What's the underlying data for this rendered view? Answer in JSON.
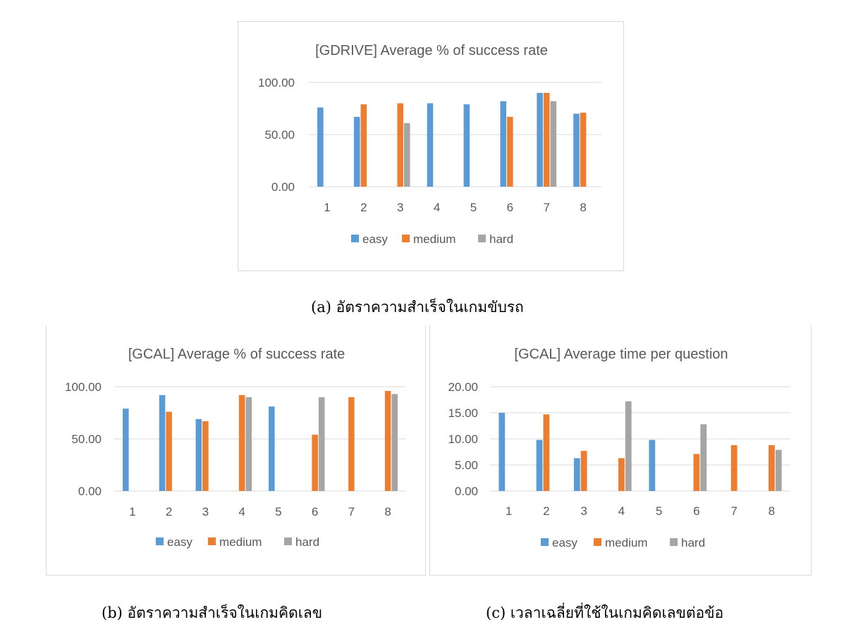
{
  "chart_data": [
    {
      "type": "bar",
      "title": "[GDRIVE] Average % of success rate",
      "xlabel": "",
      "ylabel": "",
      "categories": [
        "1",
        "2",
        "3",
        "4",
        "5",
        "6",
        "7",
        "8"
      ],
      "ylim": [
        0,
        100
      ],
      "yticks": [
        "0.00",
        "50.00",
        "100.00"
      ],
      "grid": true,
      "legend": "bottom",
      "series": [
        {
          "name": "easy",
          "color": "#5b9bd5",
          "values": [
            76,
            67,
            null,
            80,
            79,
            82,
            90,
            70
          ]
        },
        {
          "name": "medium",
          "color": "#ed7d31",
          "values": [
            null,
            79,
            80,
            null,
            null,
            67,
            90,
            71
          ]
        },
        {
          "name": "hard",
          "color": "#a5a5a5",
          "values": [
            null,
            null,
            61,
            null,
            null,
            null,
            82,
            null
          ]
        }
      ]
    },
    {
      "type": "bar",
      "title": "[GCAL] Average % of success rate",
      "xlabel": "",
      "ylabel": "",
      "categories": [
        "1",
        "2",
        "3",
        "4",
        "5",
        "6",
        "7",
        "8"
      ],
      "ylim": [
        0,
        100
      ],
      "yticks": [
        "0.00",
        "50.00",
        "100.00"
      ],
      "grid": true,
      "legend": "bottom",
      "series": [
        {
          "name": "easy",
          "color": "#5b9bd5",
          "values": [
            79,
            92,
            69,
            null,
            81,
            null,
            null,
            null
          ]
        },
        {
          "name": "medium",
          "color": "#ed7d31",
          "values": [
            null,
            76,
            67,
            92,
            null,
            54,
            90,
            96
          ]
        },
        {
          "name": "hard",
          "color": "#a5a5a5",
          "values": [
            null,
            null,
            null,
            90,
            null,
            90,
            null,
            93
          ]
        }
      ]
    },
    {
      "type": "bar",
      "title": "[GCAL] Average time per question",
      "xlabel": "",
      "ylabel": "",
      "categories": [
        "1",
        "2",
        "3",
        "4",
        "5",
        "6",
        "7",
        "8"
      ],
      "ylim": [
        0,
        20
      ],
      "yticks": [
        "0.00",
        "5.00",
        "10.00",
        "15.00",
        "20.00"
      ],
      "grid": true,
      "legend": "bottom",
      "series": [
        {
          "name": "easy",
          "color": "#5b9bd5",
          "values": [
            15,
            9.8,
            6.3,
            null,
            9.8,
            null,
            null,
            null
          ]
        },
        {
          "name": "medium",
          "color": "#ed7d31",
          "values": [
            null,
            14.7,
            7.7,
            6.3,
            null,
            7.1,
            8.8,
            8.8
          ]
        },
        {
          "name": "hard",
          "color": "#a5a5a5",
          "values": [
            null,
            null,
            null,
            17.2,
            null,
            12.8,
            null,
            7.9
          ]
        }
      ]
    }
  ],
  "captions": [
    "(a) อัตราความสำเร็จในเกมขับรถ",
    "(b) อัตราความสำเร็จในเกมคิดเลข",
    "(c) เวลาเฉลี่ยที่ใช้ในเกมคิดเลขต่อข้อ"
  ]
}
